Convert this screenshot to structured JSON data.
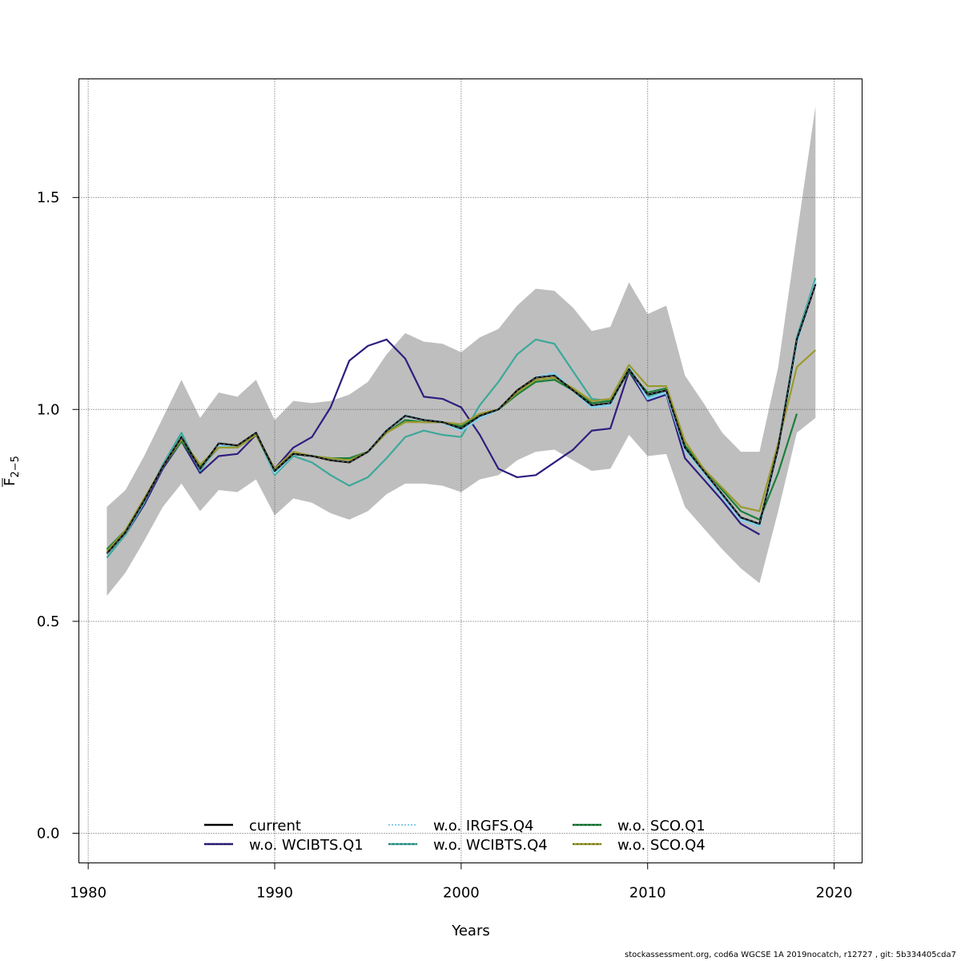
{
  "chart_data": {
    "type": "line",
    "title": "",
    "xlabel": "Years",
    "ylabel_main": "F",
    "ylabel_sub": "2−5",
    "ylabel_bar": true,
    "xlim": [
      1979.5,
      2021.5
    ],
    "ylim": [
      -0.07,
      1.78
    ],
    "xticks": [
      1980,
      1990,
      2000,
      2010,
      2020
    ],
    "xtick_labels": [
      "1980",
      "1990",
      "2000",
      "2010",
      "2020"
    ],
    "yticks": [
      0.0,
      0.5,
      1.0,
      1.5
    ],
    "ytick_labels": [
      "0.0",
      "0.5",
      "1.0",
      "1.5"
    ],
    "grid": true,
    "legend_position": "bottom-center",
    "x": [
      1981,
      1982,
      1983,
      1984,
      1985,
      1986,
      1987,
      1988,
      1989,
      1990,
      1991,
      1992,
      1993,
      1994,
      1995,
      1996,
      1997,
      1998,
      1999,
      2000,
      2001,
      2002,
      2003,
      2004,
      2005,
      2006,
      2007,
      2008,
      2009,
      2010,
      2011,
      2012,
      2013,
      2014,
      2015,
      2016,
      2017,
      2018,
      2019
    ],
    "confidence_band": {
      "name": "current 95% CI",
      "color": "#bebebe",
      "upper": [
        0.77,
        0.81,
        0.89,
        0.98,
        1.07,
        0.98,
        1.04,
        1.03,
        1.07,
        0.975,
        1.02,
        1.015,
        1.02,
        1.035,
        1.065,
        1.13,
        1.18,
        1.16,
        1.155,
        1.135,
        1.17,
        1.19,
        1.245,
        1.285,
        1.28,
        1.24,
        1.185,
        1.195,
        1.3,
        1.225,
        1.245,
        1.08,
        1.015,
        0.945,
        0.9,
        0.9,
        1.1,
        1.41,
        1.715
      ],
      "lower": [
        0.56,
        0.615,
        0.69,
        0.77,
        0.825,
        0.76,
        0.81,
        0.805,
        0.835,
        0.75,
        0.79,
        0.78,
        0.755,
        0.74,
        0.76,
        0.8,
        0.825,
        0.825,
        0.82,
        0.805,
        0.835,
        0.845,
        0.88,
        0.9,
        0.905,
        0.88,
        0.855,
        0.86,
        0.94,
        0.89,
        0.895,
        0.77,
        0.72,
        0.67,
        0.625,
        0.59,
        0.76,
        0.945,
        0.98
      ]
    },
    "series": [
      {
        "name": "w.o. WCIBTS.Q1",
        "color": "#2e1e7f",
        "dash": "solid",
        "values": [
          0.66,
          0.705,
          0.775,
          0.86,
          0.925,
          0.85,
          0.89,
          0.895,
          0.94,
          0.86,
          0.91,
          0.935,
          1.005,
          1.115,
          1.15,
          1.165,
          1.12,
          1.03,
          1.025,
          1.005,
          0.94,
          0.86,
          0.84,
          0.845,
          0.875,
          0.905,
          0.95,
          0.955,
          1.09,
          1.02,
          1.035,
          0.885,
          0.835,
          0.785,
          0.73,
          0.705,
          null,
          null,
          1.32
        ]
      },
      {
        "name": "w.o. WCIBTS.Q4",
        "color": "#3ca89a",
        "dash": "solid",
        "values": [
          0.65,
          0.705,
          0.78,
          0.87,
          0.945,
          0.855,
          0.915,
          0.91,
          0.945,
          0.845,
          0.89,
          0.875,
          0.845,
          0.82,
          0.84,
          0.885,
          0.935,
          0.95,
          0.94,
          0.935,
          1.01,
          1.065,
          1.13,
          1.165,
          1.155,
          1.09,
          1.025,
          1.02,
          1.1,
          1.03,
          1.045,
          0.905,
          0.85,
          0.8,
          0.745,
          0.725,
          0.915,
          1.17,
          1.31
        ]
      },
      {
        "name": "w.o. IRGFS.Q4",
        "color": "#87ceeb",
        "dash": "dotted",
        "values": [
          0.66,
          0.71,
          0.785,
          0.865,
          0.935,
          0.86,
          0.915,
          0.91,
          0.945,
          0.85,
          0.895,
          0.89,
          0.885,
          0.88,
          0.9,
          0.95,
          0.985,
          0.975,
          0.97,
          0.95,
          0.98,
          1.0,
          1.04,
          1.075,
          1.085,
          1.045,
          1.005,
          1.01,
          1.1,
          1.025,
          1.04,
          0.905,
          0.85,
          0.795,
          0.74,
          0.725,
          0.91,
          1.16,
          1.3
        ]
      },
      {
        "name": "w.o. SCO.Q1",
        "color": "#1a7f3a",
        "dash": "solid",
        "values": [
          0.67,
          0.715,
          0.785,
          0.865,
          0.925,
          0.865,
          0.91,
          0.91,
          0.94,
          0.855,
          0.895,
          0.89,
          0.885,
          0.885,
          0.9,
          0.945,
          0.975,
          0.97,
          0.97,
          0.96,
          0.985,
          1.0,
          1.035,
          1.065,
          1.07,
          1.045,
          1.015,
          1.02,
          1.09,
          1.04,
          1.05,
          0.915,
          0.86,
          0.81,
          0.76,
          0.74,
          0.85,
          0.99,
          null
        ]
      },
      {
        "name": "w.o. SCO.Q4",
        "color": "#9a9a2e",
        "dash": "solid",
        "values": [
          0.665,
          0.715,
          0.79,
          0.865,
          0.93,
          0.87,
          0.91,
          0.91,
          0.94,
          0.86,
          0.9,
          0.89,
          0.885,
          0.88,
          0.9,
          0.945,
          0.97,
          0.97,
          0.97,
          0.965,
          0.99,
          1.0,
          1.04,
          1.07,
          1.075,
          1.05,
          1.02,
          1.025,
          1.105,
          1.055,
          1.055,
          0.925,
          0.86,
          0.815,
          0.77,
          0.76,
          0.92,
          1.1,
          1.14
        ]
      },
      {
        "name": "current",
        "color": "#000000",
        "dash": "solid",
        "values": [
          0.66,
          0.71,
          0.785,
          0.865,
          0.935,
          0.86,
          0.92,
          0.915,
          0.945,
          0.855,
          0.895,
          0.89,
          0.88,
          0.875,
          0.9,
          0.95,
          0.985,
          0.975,
          0.97,
          0.955,
          0.985,
          1.0,
          1.045,
          1.075,
          1.08,
          1.045,
          1.01,
          1.015,
          1.095,
          1.035,
          1.045,
          0.91,
          0.855,
          0.8,
          0.745,
          0.73,
          0.91,
          1.165,
          1.295
        ]
      }
    ],
    "legend": [
      {
        "name": "current",
        "color": "#000000",
        "style": "solid"
      },
      {
        "name": "w.o. WCIBTS.Q1",
        "color": "#2e1e7f",
        "style": "dashed-overlay"
      },
      {
        "name": "w.o. IRGFS.Q4",
        "color": "#87ceeb",
        "style": "dotted"
      },
      {
        "name": "w.o. WCIBTS.Q4",
        "color": "#3ca89a",
        "style": "dashed-overlay"
      },
      {
        "name": "w.o. SCO.Q1",
        "color": "#1a7f3a",
        "style": "dashed-overlay"
      },
      {
        "name": "w.o. SCO.Q4",
        "color": "#9a9a2e",
        "style": "dashed-overlay"
      }
    ]
  },
  "footer": "stockassessment.org, cod6a  WGCSE  1A  2019nocatch, r12727 , git: 5b334405cda7"
}
